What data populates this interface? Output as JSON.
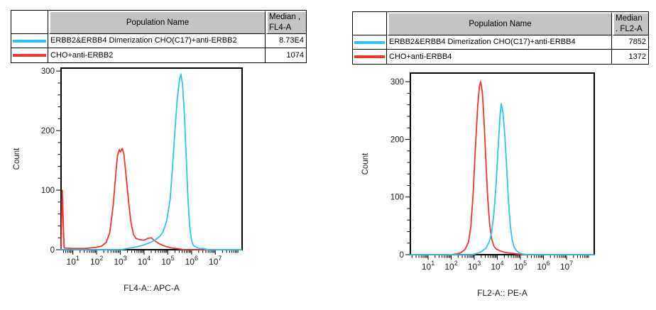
{
  "colors": {
    "cyan": "#29c5f4",
    "red": "#f4332b",
    "header_grey": "#c3c3c3",
    "axis_black": "#000000"
  },
  "panels": [
    {
      "table": {
        "header": {
          "population": "Population Name",
          "median_line1": "Median ,",
          "median_line2": "FL4-A"
        },
        "rows": [
          {
            "swatch_color": "#29c5f4",
            "name": "ERBB2&ERBB4 Dimerization CHO(C17)+anti-ERBB2",
            "median": "8.73E4"
          },
          {
            "swatch_color": "#f4332b",
            "name": "CHO+anti-ERBB2",
            "median": "1074"
          }
        ]
      }
    },
    {
      "table": {
        "header": {
          "population": "Population Name",
          "median_line1": "Median",
          "median_line2": ". FL2-A"
        },
        "rows": [
          {
            "swatch_color": "#29c5f4",
            "name": "ERBB2&ERBB4 Dimerization CHO(C17)+anti-ERBB4",
            "median": "7852"
          },
          {
            "swatch_color": "#f4332b",
            "name": "CHO+anti-ERBB4",
            "median": "1372"
          }
        ]
      }
    }
  ],
  "chart_data": [
    {
      "type": "line",
      "subtype": "flow-cytometry-histogram",
      "title": "",
      "xlabel": "FL4-A:: APC-A",
      "ylabel": "Count",
      "x_scale": "log10",
      "xlim_log": [
        0.5,
        8.13
      ],
      "x_tick_exponents": [
        1,
        2,
        3,
        4,
        5,
        6,
        7
      ],
      "ylim": [
        0,
        305
      ],
      "y_ticks": [
        0,
        100,
        200,
        300
      ],
      "y_minor_step": 20,
      "grid": false,
      "legend_position": "table-above",
      "series": [
        {
          "name": "CHO+anti-ERBB2",
          "color": "#f4332b",
          "median": "1074",
          "points_logx_count": [
            [
              0.5,
              0
            ],
            [
              0.55,
              100
            ],
            [
              0.63,
              3
            ],
            [
              1.0,
              2
            ],
            [
              1.5,
              2
            ],
            [
              2.0,
              4
            ],
            [
              2.2,
              6
            ],
            [
              2.4,
              12
            ],
            [
              2.55,
              28
            ],
            [
              2.7,
              75
            ],
            [
              2.8,
              125
            ],
            [
              2.88,
              158
            ],
            [
              2.95,
              168
            ],
            [
              3.0,
              164
            ],
            [
              3.08,
              170
            ],
            [
              3.15,
              160
            ],
            [
              3.25,
              120
            ],
            [
              3.35,
              80
            ],
            [
              3.45,
              45
            ],
            [
              3.55,
              26
            ],
            [
              3.65,
              19
            ],
            [
              3.8,
              17
            ],
            [
              4.0,
              16
            ],
            [
              4.15,
              19
            ],
            [
              4.3,
              20
            ],
            [
              4.45,
              15
            ],
            [
              4.6,
              11
            ],
            [
              4.75,
              8
            ],
            [
              4.95,
              5
            ],
            [
              5.15,
              3
            ],
            [
              5.35,
              2
            ],
            [
              5.55,
              1
            ],
            [
              5.65,
              0
            ],
            [
              8.1,
              0
            ]
          ]
        },
        {
          "name": "ERBB2&ERBB4 Dimerization CHO(C17)+anti-ERBB2",
          "color": "#29c5f4",
          "median": "8.73E4",
          "points_logx_count": [
            [
              0.5,
              0
            ],
            [
              3.05,
              0
            ],
            [
              3.3,
              2
            ],
            [
              3.6,
              4
            ],
            [
              3.9,
              7
            ],
            [
              4.2,
              11
            ],
            [
              4.45,
              16
            ],
            [
              4.65,
              22
            ],
            [
              4.8,
              30
            ],
            [
              4.95,
              48
            ],
            [
              5.1,
              85
            ],
            [
              5.2,
              140
            ],
            [
              5.3,
              200
            ],
            [
              5.4,
              255
            ],
            [
              5.5,
              287
            ],
            [
              5.55,
              295
            ],
            [
              5.62,
              278
            ],
            [
              5.7,
              225
            ],
            [
              5.78,
              150
            ],
            [
              5.85,
              85
            ],
            [
              5.92,
              40
            ],
            [
              6.0,
              15
            ],
            [
              6.08,
              7
            ],
            [
              6.2,
              4
            ],
            [
              6.35,
              2
            ],
            [
              6.5,
              2
            ],
            [
              6.6,
              1
            ],
            [
              6.7,
              0
            ],
            [
              8.1,
              0
            ]
          ]
        }
      ]
    },
    {
      "type": "line",
      "subtype": "flow-cytometry-histogram",
      "title": "",
      "xlabel": "FL2-A:: PE-A",
      "ylabel": "Count",
      "x_scale": "log10",
      "xlim_log": [
        0.23,
        8.2
      ],
      "x_tick_exponents": [
        1,
        2,
        3,
        4,
        5,
        6,
        7
      ],
      "ylim": [
        0,
        315
      ],
      "y_ticks": [
        0,
        100,
        200,
        300
      ],
      "y_minor_step": 20,
      "grid": false,
      "legend_position": "table-above",
      "series": [
        {
          "name": "CHO+anti-ERBB4",
          "color": "#f4332b",
          "median": "1372",
          "points_logx_count": [
            [
              0.23,
              0
            ],
            [
              2.0,
              0
            ],
            [
              2.2,
              1
            ],
            [
              2.4,
              3
            ],
            [
              2.6,
              9
            ],
            [
              2.75,
              22
            ],
            [
              2.85,
              48
            ],
            [
              2.95,
              105
            ],
            [
              3.05,
              185
            ],
            [
              3.15,
              258
            ],
            [
              3.22,
              292
            ],
            [
              3.28,
              300
            ],
            [
              3.35,
              282
            ],
            [
              3.42,
              235
            ],
            [
              3.5,
              165
            ],
            [
              3.58,
              100
            ],
            [
              3.66,
              55
            ],
            [
              3.75,
              28
            ],
            [
              3.85,
              15
            ],
            [
              3.95,
              10
            ],
            [
              4.1,
              7
            ],
            [
              4.3,
              4
            ],
            [
              4.5,
              3
            ],
            [
              4.7,
              2
            ],
            [
              4.9,
              1
            ],
            [
              5.05,
              0
            ],
            [
              8.2,
              0
            ]
          ]
        },
        {
          "name": "ERBB2&ERBB4 Dimerization CHO(C17)+anti-ERBB4",
          "color": "#29c5f4",
          "median": "7852",
          "points_logx_count": [
            [
              0.23,
              0
            ],
            [
              2.9,
              0
            ],
            [
              3.1,
              2
            ],
            [
              3.3,
              5
            ],
            [
              3.5,
              11
            ],
            [
              3.65,
              22
            ],
            [
              3.75,
              38
            ],
            [
              3.85,
              70
            ],
            [
              3.95,
              125
            ],
            [
              4.05,
              195
            ],
            [
              4.12,
              243
            ],
            [
              4.17,
              262
            ],
            [
              4.24,
              248
            ],
            [
              4.32,
              210
            ],
            [
              4.4,
              155
            ],
            [
              4.48,
              95
            ],
            [
              4.56,
              52
            ],
            [
              4.64,
              26
            ],
            [
              4.73,
              13
            ],
            [
              4.82,
              7
            ],
            [
              4.95,
              3
            ],
            [
              5.1,
              1
            ],
            [
              5.3,
              0
            ],
            [
              8.2,
              0
            ]
          ]
        }
      ]
    }
  ]
}
